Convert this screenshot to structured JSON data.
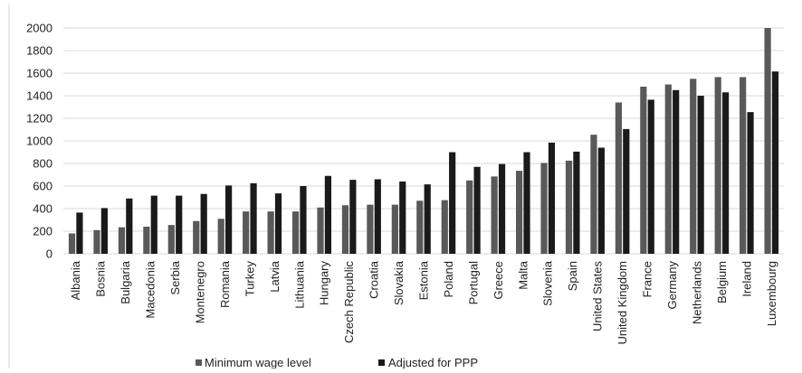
{
  "chart_data": {
    "type": "bar",
    "title": "",
    "xlabel": "",
    "ylabel": "",
    "ylim": [
      0,
      2000
    ],
    "yticks": [
      0,
      200,
      400,
      600,
      800,
      1000,
      1200,
      1400,
      1600,
      1800,
      2000
    ],
    "grid": "horizontal",
    "legend_position": "bottom",
    "categories": [
      "Albania",
      "Bosnia",
      "Bulgaria",
      "Macedonia",
      "Serbia",
      "Montenegro",
      "Romania",
      "Turkey",
      "Latvia",
      "Lithuania",
      "Hungary",
      "Czech Republic",
      "Croatia",
      "Slovakia",
      "Estonia",
      "Poland",
      "Portugal",
      "Greece",
      "Malta",
      "Slovenia",
      "Spain",
      "United States",
      "United Kingdom",
      "France",
      "Germany",
      "Netherlands",
      "Belgium",
      "Ireland",
      "Luxembourg"
    ],
    "series": [
      {
        "name": "Minimum wage level",
        "color": "#595959",
        "values": [
          180,
          210,
          235,
          240,
          255,
          290,
          310,
          375,
          375,
          375,
          410,
          430,
          435,
          435,
          470,
          475,
          650,
          685,
          735,
          805,
          825,
          1055,
          1340,
          1480,
          1500,
          1550,
          1565,
          1565,
          2000
        ]
      },
      {
        "name": "Adjusted for PPP",
        "color": "#1a1a1a",
        "values": [
          365,
          405,
          490,
          515,
          515,
          530,
          605,
          625,
          535,
          600,
          690,
          655,
          660,
          640,
          615,
          900,
          770,
          795,
          900,
          985,
          905,
          940,
          1105,
          1365,
          1450,
          1400,
          1430,
          1255,
          1615
        ]
      }
    ]
  }
}
